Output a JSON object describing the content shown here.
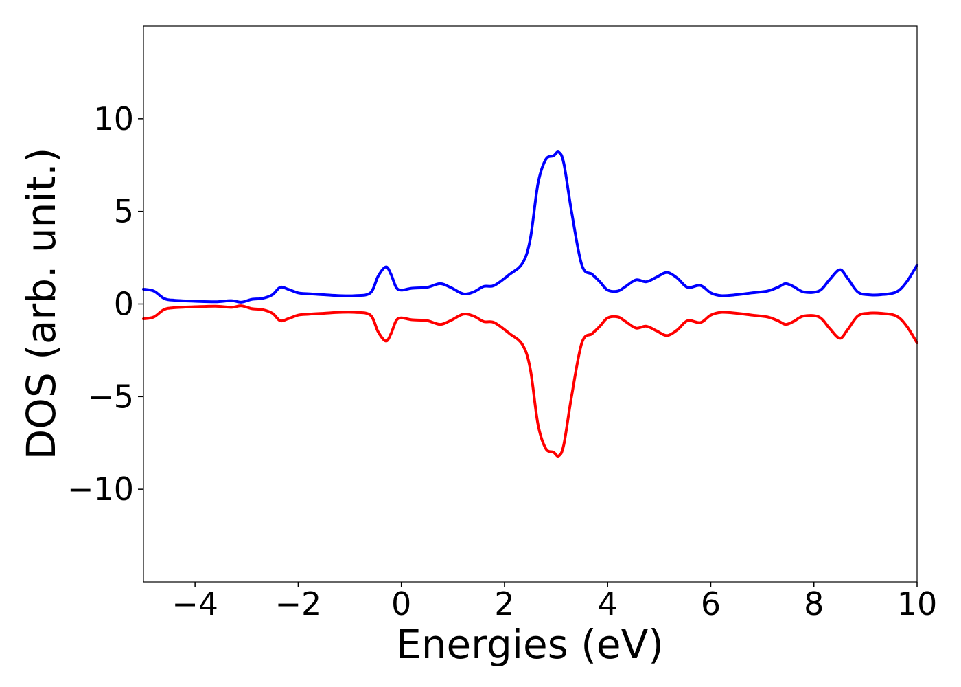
{
  "chart_data": {
    "type": "line",
    "title": "",
    "xlabel": "Energies (eV)",
    "ylabel": "DOS (arb. unit.)",
    "xlim": [
      -5,
      10
    ],
    "ylim": [
      -15,
      15
    ],
    "grid": false,
    "legend": "none",
    "x_ticks": [
      {
        "value": -4,
        "label": "−4"
      },
      {
        "value": -2,
        "label": "−2"
      },
      {
        "value": 0,
        "label": "0"
      },
      {
        "value": 2,
        "label": "2"
      },
      {
        "value": 4,
        "label": "4"
      },
      {
        "value": 6,
        "label": "6"
      },
      {
        "value": 8,
        "label": "8"
      },
      {
        "value": 10,
        "label": "10"
      }
    ],
    "y_ticks": [
      {
        "value": 10,
        "label": "10"
      },
      {
        "value": 5,
        "label": "5"
      },
      {
        "value": 0,
        "label": "0"
      },
      {
        "value": -5,
        "label": "−5"
      },
      {
        "value": -10,
        "label": "−10"
      }
    ],
    "series": [
      {
        "color": "#0000ff",
        "x": [
          -5.0,
          -4.8,
          -4.6,
          -4.4,
          -4.0,
          -3.6,
          -3.3,
          -3.1,
          -2.9,
          -2.7,
          -2.5,
          -2.35,
          -2.2,
          -2.0,
          -1.8,
          -1.5,
          -1.2,
          -0.9,
          -0.6,
          -0.45,
          -0.3,
          -0.2,
          -0.1,
          0.0,
          0.2,
          0.5,
          0.75,
          0.95,
          1.2,
          1.4,
          1.6,
          1.8,
          2.1,
          2.35,
          2.5,
          2.65,
          2.8,
          2.95,
          3.05,
          3.15,
          3.3,
          3.5,
          3.7,
          3.85,
          4.0,
          4.2,
          4.35,
          4.55,
          4.75,
          4.95,
          5.15,
          5.35,
          5.55,
          5.8,
          6.0,
          6.2,
          6.5,
          6.8,
          7.1,
          7.3,
          7.45,
          7.6,
          7.8,
          8.1,
          8.3,
          8.5,
          8.65,
          8.85,
          9.05,
          9.3,
          9.6,
          9.8,
          10.0
        ],
        "y": [
          0.8,
          0.7,
          0.3,
          0.2,
          0.15,
          0.12,
          0.18,
          0.1,
          0.25,
          0.3,
          0.5,
          0.9,
          0.8,
          0.6,
          0.55,
          0.5,
          0.45,
          0.45,
          0.6,
          1.5,
          2.0,
          1.6,
          0.9,
          0.75,
          0.85,
          0.9,
          1.1,
          0.9,
          0.55,
          0.65,
          0.95,
          1.0,
          1.6,
          2.2,
          3.5,
          6.5,
          7.8,
          8.0,
          8.2,
          7.6,
          5.0,
          2.1,
          1.6,
          1.2,
          0.75,
          0.7,
          0.95,
          1.3,
          1.2,
          1.45,
          1.7,
          1.4,
          0.9,
          1.0,
          0.6,
          0.45,
          0.5,
          0.6,
          0.7,
          0.9,
          1.1,
          0.95,
          0.65,
          0.7,
          1.3,
          1.85,
          1.4,
          0.65,
          0.5,
          0.5,
          0.65,
          1.2,
          2.1
        ]
      },
      {
        "color": "#ff0000",
        "x": [
          -5.0,
          -4.8,
          -4.6,
          -4.4,
          -4.0,
          -3.6,
          -3.3,
          -3.1,
          -2.9,
          -2.7,
          -2.5,
          -2.35,
          -2.2,
          -2.0,
          -1.8,
          -1.5,
          -1.2,
          -0.9,
          -0.6,
          -0.45,
          -0.3,
          -0.2,
          -0.1,
          0.0,
          0.2,
          0.5,
          0.75,
          0.95,
          1.2,
          1.4,
          1.6,
          1.8,
          2.1,
          2.35,
          2.5,
          2.65,
          2.8,
          2.95,
          3.05,
          3.15,
          3.3,
          3.5,
          3.7,
          3.85,
          4.0,
          4.2,
          4.35,
          4.55,
          4.75,
          4.95,
          5.15,
          5.35,
          5.55,
          5.8,
          6.0,
          6.2,
          6.5,
          6.8,
          7.1,
          7.3,
          7.45,
          7.6,
          7.8,
          8.1,
          8.3,
          8.5,
          8.65,
          8.85,
          9.05,
          9.3,
          9.6,
          9.8,
          10.0
        ],
        "y": [
          -0.8,
          -0.7,
          -0.3,
          -0.2,
          -0.15,
          -0.12,
          -0.18,
          -0.1,
          -0.25,
          -0.3,
          -0.5,
          -0.9,
          -0.8,
          -0.6,
          -0.55,
          -0.5,
          -0.45,
          -0.45,
          -0.6,
          -1.5,
          -2.0,
          -1.6,
          -0.9,
          -0.75,
          -0.85,
          -0.9,
          -1.1,
          -0.9,
          -0.55,
          -0.65,
          -0.95,
          -1.0,
          -1.6,
          -2.2,
          -3.5,
          -6.5,
          -7.8,
          -8.0,
          -8.2,
          -7.6,
          -5.0,
          -2.1,
          -1.6,
          -1.2,
          -0.75,
          -0.7,
          -0.95,
          -1.3,
          -1.2,
          -1.45,
          -1.7,
          -1.4,
          -0.9,
          -1.0,
          -0.6,
          -0.45,
          -0.5,
          -0.6,
          -0.7,
          -0.9,
          -1.1,
          -0.95,
          -0.65,
          -0.7,
          -1.3,
          -1.85,
          -1.4,
          -0.65,
          -0.5,
          -0.5,
          -0.65,
          -1.2,
          -2.1
        ]
      }
    ]
  }
}
